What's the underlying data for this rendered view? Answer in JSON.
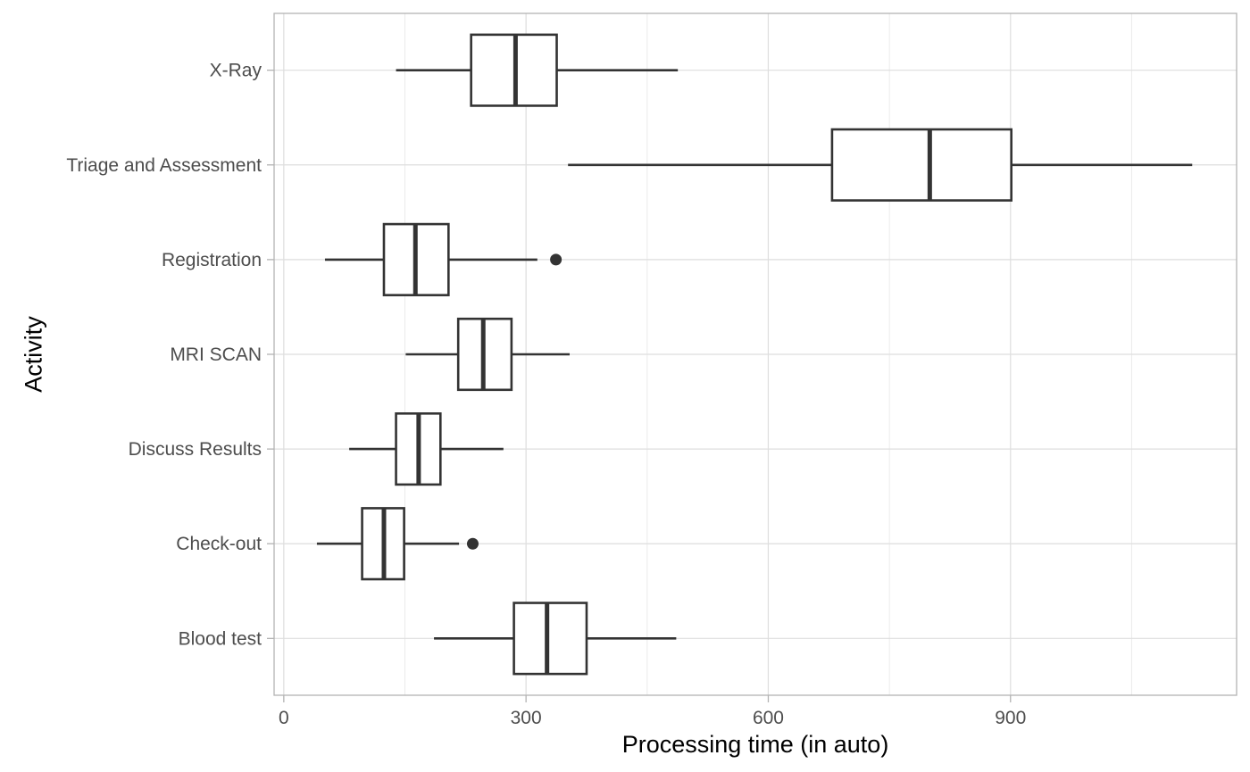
{
  "chart_data": {
    "type": "boxplot",
    "orientation": "horizontal",
    "xlabel": "Processing time (in auto)",
    "ylabel": "Activity",
    "xlim": [
      -12,
      1180
    ],
    "x_ticks": [
      0,
      300,
      600,
      900
    ],
    "x_minor_ticks": [
      150,
      450,
      750,
      1050
    ],
    "grid": true,
    "theme": "light",
    "colors": {
      "box_stroke": "#333333",
      "grid": "#dedede",
      "panel_border": "#b3b3b3",
      "tick_text": "#4d4d4d"
    },
    "categories": [
      "Blood test",
      "Check-out",
      "Discuss Results",
      "MRI SCAN",
      "Registration",
      "Triage and Assessment",
      "X-Ray"
    ],
    "boxes": [
      {
        "label": "Blood test",
        "whisker_low": 186,
        "q1": 285,
        "median": 326,
        "q3": 375,
        "whisker_high": 486,
        "outliers": []
      },
      {
        "label": "Check-out",
        "whisker_low": 41,
        "q1": 97,
        "median": 124,
        "q3": 149,
        "whisker_high": 217,
        "outliers": [
          234
        ]
      },
      {
        "label": "Discuss Results",
        "whisker_low": 81,
        "q1": 139,
        "median": 167,
        "q3": 194,
        "whisker_high": 272,
        "outliers": []
      },
      {
        "label": "MRI SCAN",
        "whisker_low": 151,
        "q1": 216,
        "median": 247,
        "q3": 282,
        "whisker_high": 354,
        "outliers": []
      },
      {
        "label": "Registration",
        "whisker_low": 51,
        "q1": 124,
        "median": 163,
        "q3": 204,
        "whisker_high": 314,
        "outliers": [
          337
        ]
      },
      {
        "label": "Triage and Assessment",
        "whisker_low": 352,
        "q1": 679,
        "median": 800,
        "q3": 901,
        "whisker_high": 1125,
        "outliers": []
      },
      {
        "label": "X-Ray",
        "whisker_low": 139,
        "q1": 232,
        "median": 287,
        "q3": 338,
        "whisker_high": 488,
        "outliers": []
      }
    ]
  }
}
